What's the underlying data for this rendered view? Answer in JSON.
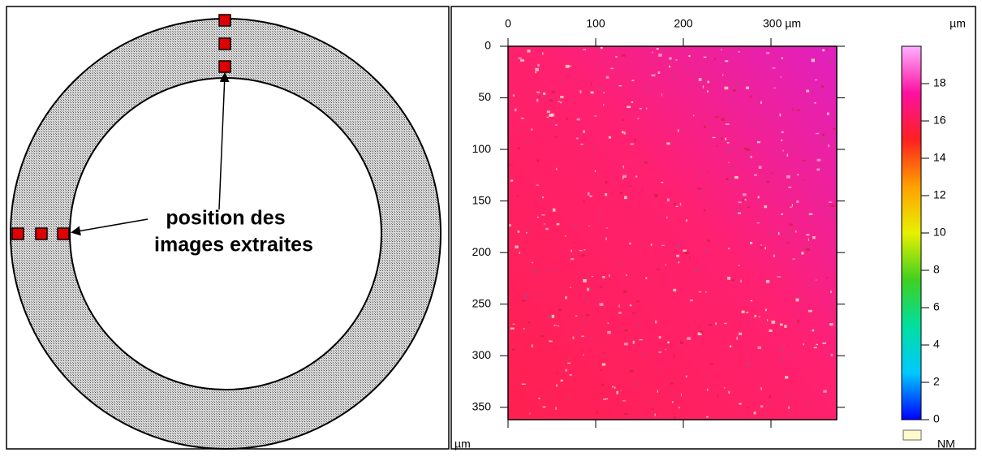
{
  "diagram": {
    "label": [
      "position des",
      "images extraites"
    ]
  },
  "chart_data": {
    "type": "heatmap",
    "xlim": [
      0,
      375
    ],
    "xticks": [
      0,
      100,
      200,
      {
        "value": 300,
        "label": "300 µm"
      }
    ],
    "ylim": [
      0,
      362
    ],
    "yticks": [
      0,
      50,
      100,
      150,
      200,
      250,
      300,
      350
    ],
    "ylabel": "µm",
    "colorbar": {
      "unit": "µm",
      "lim": [
        0,
        20
      ],
      "ticks": [
        0,
        2,
        4,
        6,
        8,
        10,
        12,
        14,
        16,
        18
      ],
      "colormap": [
        "#0000ff",
        "#00c8ff",
        "#00e0a0",
        "#40d020",
        "#e8f000",
        "#ffa000",
        "#ff2020",
        "#ff10a0",
        "#ffb0ff"
      ],
      "missing_label": "NM",
      "missing_color": "#fffacd"
    }
  }
}
